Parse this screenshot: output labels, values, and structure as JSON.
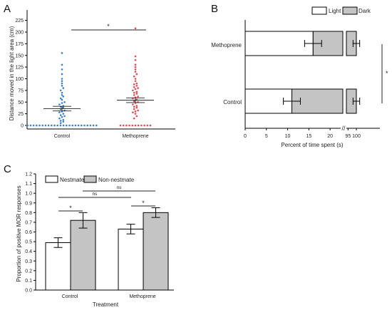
{
  "chart_data": [
    {
      "panel": "A",
      "type": "scatter",
      "ylabel": "Distance moved in the light area (cm)",
      "yticks": [
        "0",
        "25",
        "50",
        "75",
        "100",
        "125",
        "150",
        "175",
        "200",
        "225"
      ],
      "ylim": [
        0,
        225
      ],
      "categories": [
        "Control",
        "Methoprene"
      ],
      "colors": [
        "#3b7ec9",
        "#e34a50"
      ],
      "series": [
        {
          "mean": 36,
          "sem": 5,
          "values": [
            0,
            0,
            0,
            0,
            0,
            0,
            0,
            0,
            0,
            0,
            0,
            0,
            0,
            0,
            0,
            0,
            0,
            0,
            0,
            0,
            0,
            0,
            0,
            0,
            5,
            8,
            10,
            12,
            15,
            18,
            20,
            22,
            25,
            28,
            30,
            32,
            35,
            38,
            40,
            42,
            45,
            48,
            50,
            55,
            58,
            62,
            65,
            70,
            75,
            80,
            85,
            90,
            95,
            100,
            110,
            120,
            130,
            155
          ]
        },
        {
          "mean": 54,
          "sem": 5,
          "values": [
            0,
            0,
            0,
            0,
            0,
            0,
            0,
            0,
            0,
            0,
            0,
            15,
            20,
            25,
            28,
            30,
            32,
            35,
            38,
            40,
            42,
            45,
            48,
            50,
            52,
            55,
            58,
            60,
            62,
            65,
            68,
            70,
            72,
            75,
            78,
            80,
            82,
            85,
            88,
            90,
            95,
            100,
            105,
            110,
            115,
            120,
            125,
            130,
            140,
            148,
            208
          ]
        }
      ],
      "significance": "*"
    },
    {
      "panel": "B",
      "type": "bar",
      "orientation": "horizontal-stacked",
      "categories": [
        "Methoprene",
        "Control"
      ],
      "legend": [
        "Light",
        "Dark"
      ],
      "colors": {
        "light": "#ffffff",
        "dark": "#c4c4c4"
      },
      "light_values": [
        16,
        11
      ],
      "light_err": [
        1.5,
        1.5
      ],
      "total_err": [
        2,
        2
      ],
      "xlabel": "Percent of time spent (s)",
      "xticks": [
        "0",
        "5",
        "10",
        "15",
        "20",
        "95",
        "100"
      ],
      "axis_break": "//",
      "significance": "*"
    },
    {
      "panel": "C",
      "type": "bar",
      "categories": [
        "Control",
        "Methoprene"
      ],
      "series": [
        {
          "name": "Nestmate",
          "values": [
            0.49,
            0.63
          ],
          "err": [
            0.05,
            0.05
          ],
          "color": "#ffffff"
        },
        {
          "name": "Non-nestmate",
          "values": [
            0.72,
            0.8
          ],
          "err": [
            0.08,
            0.05
          ],
          "color": "#c4c4c4"
        }
      ],
      "ylabel": "Proportion of positive MOR responses",
      "xlabel": "Treatment",
      "ylim": [
        0,
        1.2
      ],
      "yticks": [
        "0.0",
        "0.1",
        "0.2",
        "0.3",
        "0.4",
        "0.5",
        "0.6",
        "0.7",
        "0.8",
        "0.9",
        "1.0",
        "1.1",
        "1.2"
      ],
      "significance": [
        "*",
        "*",
        "ns",
        "ns"
      ]
    }
  ]
}
